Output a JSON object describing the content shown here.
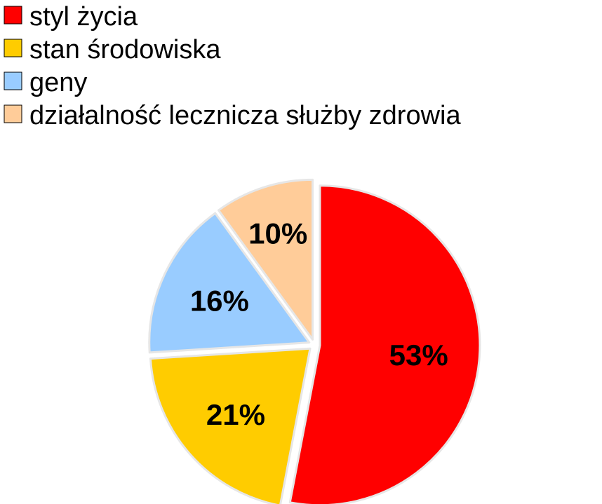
{
  "chart_data": {
    "type": "pie",
    "categories": [
      "styl życia",
      "stan środowiska",
      "geny",
      "działalność lecznicza służby zdrowia"
    ],
    "values": [
      53,
      21,
      16,
      10
    ],
    "data_labels": [
      "53%",
      "21%",
      "16%",
      "10%"
    ],
    "colors": [
      "#ff0000",
      "#ffcc00",
      "#99ccff",
      "#ffcc99"
    ],
    "slice_border_color": "#e6e6e6",
    "legend_position": "top-left",
    "start": "12 o'clock, clockwise",
    "exploded": true
  }
}
